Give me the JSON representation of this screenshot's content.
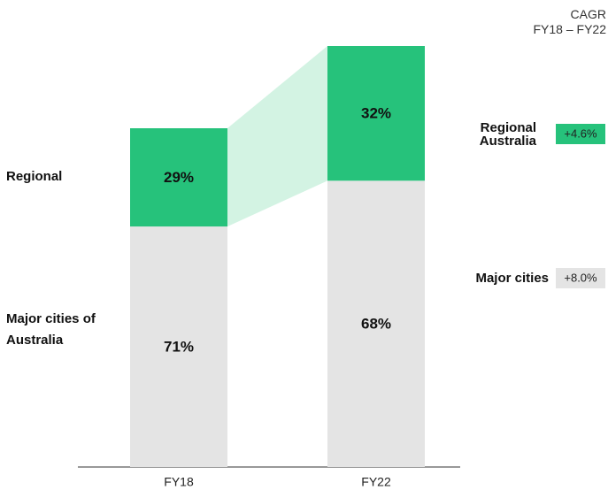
{
  "chart_data": {
    "type": "bar",
    "stacked": true,
    "categories": [
      "FY18",
      "FY22"
    ],
    "series": [
      {
        "name": "Major cities of Australia",
        "color": "#e4e4e4",
        "values": [
          71,
          68
        ],
        "value_labels": [
          "71%",
          "68%"
        ]
      },
      {
        "name": "Regional",
        "color": "#26c27b",
        "values": [
          29,
          32
        ],
        "value_labels": [
          "29%",
          "32%"
        ]
      }
    ],
    "connector_color": "#d3f3e3",
    "cagr": {
      "title": "CAGR",
      "period": "FY18 – FY22",
      "items": [
        {
          "name": "Regional Australia",
          "value": 4.6,
          "value_label": "+4.6%",
          "color": "#26c27b"
        },
        {
          "name": "Major cities",
          "value": 8.0,
          "value_label": "+8.0%",
          "color": "#e4e4e4"
        }
      ]
    }
  }
}
